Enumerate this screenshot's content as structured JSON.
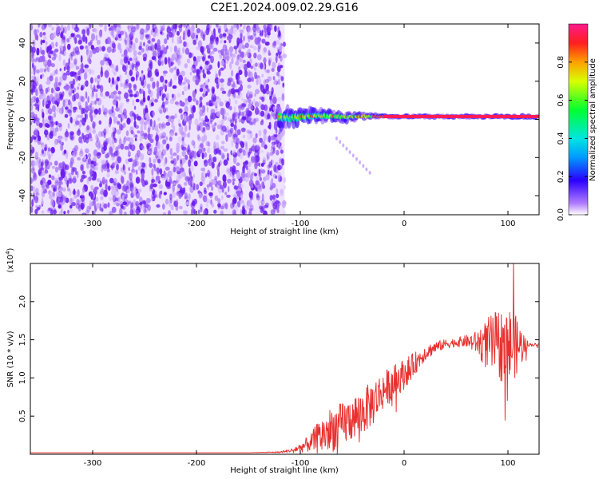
{
  "figure_title": "C2E1.2024.009.02.29.G16",
  "colors": {
    "signal_line": "#e8312f",
    "background": "#ffffff",
    "noise": "#7a34f0"
  },
  "chart_data": [
    {
      "type": "heatmap",
      "title": "C2E1.2024.009.02.29.G16",
      "xlabel": "Height of straight line (km)",
      "ylabel": "Frequency (Hz)",
      "xlim": [
        -360,
        130
      ],
      "ylim": [
        -50,
        50
      ],
      "x_ticks": [
        -300,
        -200,
        -100,
        0,
        100
      ],
      "y_ticks": [
        -40,
        -20,
        0,
        20,
        40
      ],
      "colorbar": {
        "label": "Normalized spectral amplitude",
        "range": [
          0,
          1
        ],
        "ticks": [
          "0.0",
          "0.2",
          "0.4",
          "0.6",
          "0.8"
        ]
      },
      "regions": [
        {
          "kind": "noise",
          "x_range": [
            -360,
            -115
          ],
          "y_range": [
            -50,
            50
          ],
          "amplitude": 0.2
        },
        {
          "kind": "signal_track",
          "x_range": [
            -120,
            130
          ],
          "center_freq_hz": 1.5,
          "amplitude": 0.95
        },
        {
          "kind": "faint_branch",
          "x_start": -65,
          "x_end": -33,
          "freq_start_hz": -10,
          "freq_end_hz": -28,
          "amplitude": 0.15
        }
      ]
    },
    {
      "type": "line",
      "xlabel": "Height of straight line (km)",
      "ylabel": "SNR (10 * v/v)",
      "y_multiplier_label": "(x10",
      "y_multiplier_exp": "4",
      "xlim": [
        -360,
        130
      ],
      "ylim": [
        0,
        2.5
      ],
      "x_ticks": [
        -300,
        -200,
        -100,
        0,
        100
      ],
      "y_ticks": [
        "0.5",
        "1.0",
        "1.5",
        "2.0"
      ],
      "series": [
        {
          "x": [
            -360,
            -300,
            -250,
            -200,
            -150,
            -120,
            -110,
            -100,
            -90,
            -80,
            -70,
            -60,
            -50,
            -40,
            -30,
            -20,
            -10,
            0,
            10,
            20,
            30,
            40,
            50,
            60,
            70,
            80,
            90,
            100,
            110,
            120,
            130
          ],
          "values": [
            0.02,
            0.02,
            0.02,
            0.02,
            0.02,
            0.03,
            0.05,
            0.1,
            0.18,
            0.3,
            0.4,
            0.45,
            0.55,
            0.62,
            0.75,
            0.9,
            1.0,
            1.1,
            1.22,
            1.35,
            1.42,
            1.46,
            1.48,
            1.5,
            1.5,
            1.52,
            1.55,
            1.55,
            1.5,
            1.44,
            1.44
          ],
          "noise_amplitude": [
            0,
            0,
            0,
            0,
            0,
            0.01,
            0.02,
            0.06,
            0.12,
            0.25,
            0.3,
            0.3,
            0.3,
            0.3,
            0.3,
            0.25,
            0.22,
            0.2,
            0.15,
            0.1,
            0.08,
            0.06,
            0.06,
            0.08,
            0.15,
            0.35,
            0.45,
            0.55,
            0.35,
            0.02,
            0.02
          ],
          "peak_max": 2.52
        }
      ]
    }
  ]
}
